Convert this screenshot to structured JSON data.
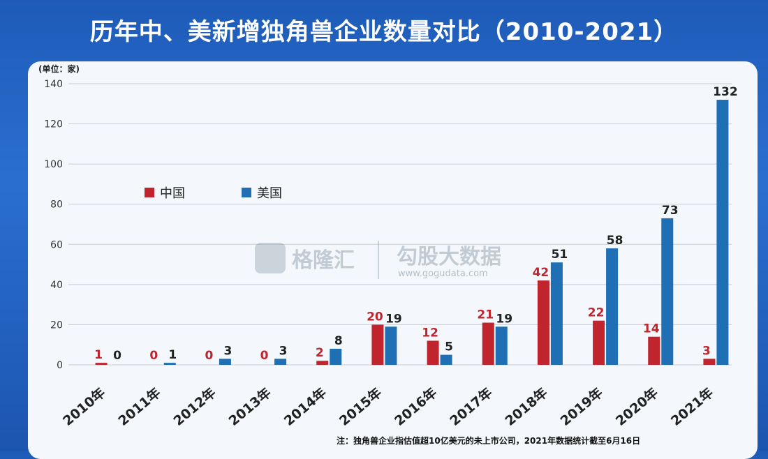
{
  "title": "历年中、美新增独角兽企业数量对比（2010-2021）",
  "note": "注：独角兽企业指估值超10亿美元的未上市公司，2021年数据统计截至6月16日",
  "watermark": {
    "brand1": "格隆汇",
    "brand2": "勾股大数据",
    "url": "www.gogudata.com"
  },
  "colors": {
    "china": "#c0242c",
    "usa": "#1f6fb5"
  },
  "chart_data": {
    "type": "bar",
    "unit_label": "(单位：家)",
    "categories": [
      "2010年",
      "2011年",
      "2012年",
      "2013年",
      "2014年",
      "2015年",
      "2016年",
      "2017年",
      "2018年",
      "2019年",
      "2020年",
      "2021年"
    ],
    "series": [
      {
        "name": "中国",
        "values": [
          1,
          0,
          0,
          0,
          2,
          20,
          12,
          21,
          42,
          22,
          14,
          3
        ]
      },
      {
        "name": "美国",
        "values": [
          0,
          1,
          3,
          3,
          8,
          19,
          5,
          19,
          51,
          58,
          73,
          132
        ]
      }
    ],
    "yticks": [
      0,
      20,
      40,
      60,
      80,
      100,
      120,
      140
    ],
    "ylim": [
      0,
      140
    ],
    "grid": true,
    "legend_position": "top-left"
  }
}
